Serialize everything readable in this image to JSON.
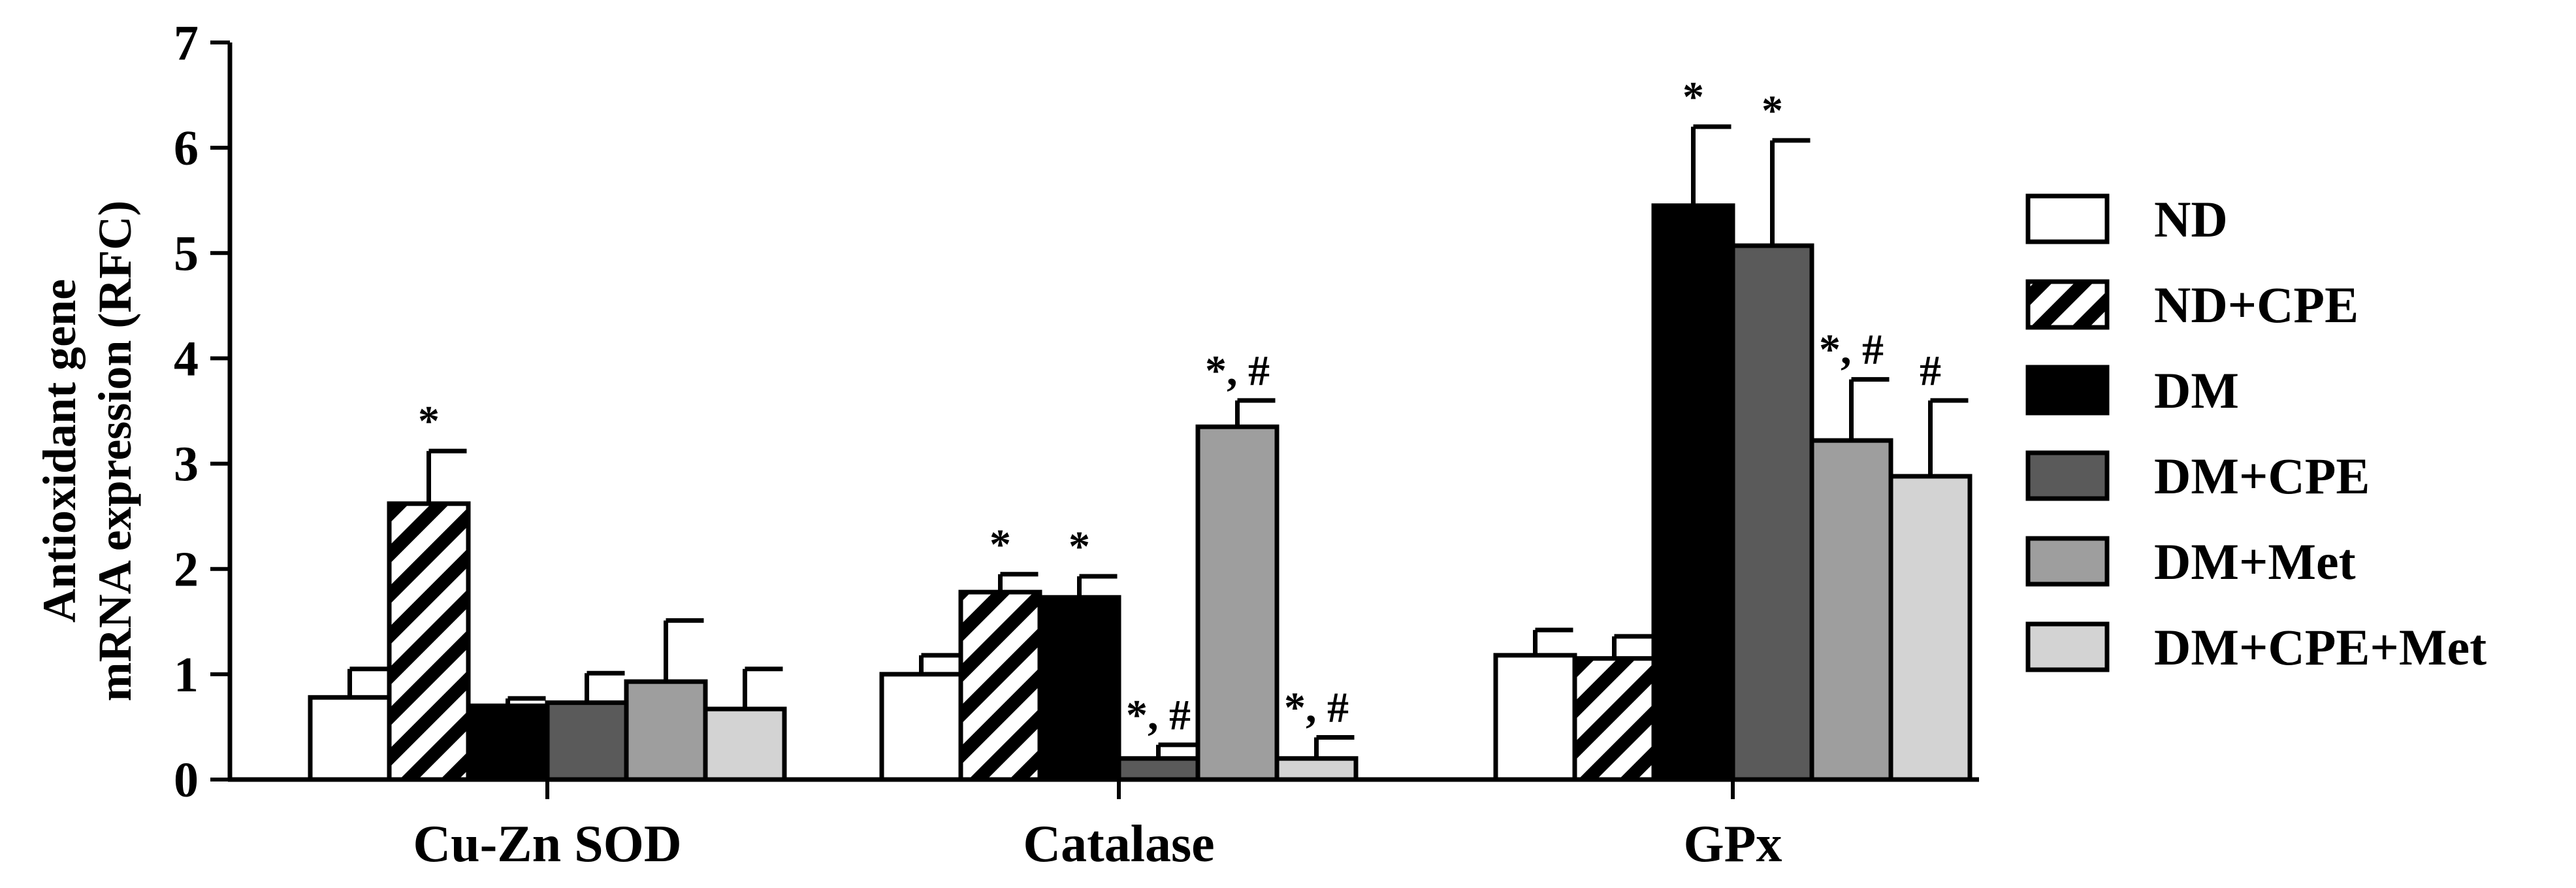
{
  "chart_data": {
    "type": "bar",
    "title": "",
    "xlabel": "",
    "ylabel_lines": [
      "Antioxidant gene",
      "mRNA expression (RFC)"
    ],
    "ylim": [
      0,
      7
    ],
    "yticks": [
      "0",
      "1",
      "2",
      "3",
      "4",
      "5",
      "6",
      "7"
    ],
    "categories": [
      "Cu-Zn SOD",
      "Catalase",
      "GPx"
    ],
    "legend_position": "right",
    "grid": false,
    "series": [
      {
        "name": "ND",
        "fill": "plain",
        "color": "#ffffff",
        "values": [
          0.78,
          1.0,
          1.18
        ],
        "errors": [
          0.27,
          0.18,
          0.24
        ],
        "annotations": [
          "",
          "",
          ""
        ]
      },
      {
        "name": "ND+CPE",
        "fill": "hatched",
        "color": "#ffffff",
        "values": [
          2.62,
          1.78,
          1.15
        ],
        "errors": [
          0.5,
          0.17,
          0.21
        ],
        "annotations": [
          "*",
          "*",
          ""
        ]
      },
      {
        "name": "DM",
        "fill": "plain",
        "color": "#000000",
        "values": [
          0.7,
          1.73,
          5.45
        ],
        "errors": [
          0.07,
          0.2,
          0.75
        ],
        "annotations": [
          "",
          "*",
          "*"
        ]
      },
      {
        "name": "DM+CPE",
        "fill": "plain",
        "color": "#5a5a5a",
        "values": [
          0.73,
          0.2,
          5.07
        ],
        "errors": [
          0.28,
          0.13,
          1.0
        ],
        "annotations": [
          "",
          "*, #",
          "*"
        ]
      },
      {
        "name": "DM+Met",
        "fill": "plain",
        "color": "#9e9e9e",
        "values": [
          0.93,
          3.35,
          3.22
        ],
        "errors": [
          0.58,
          0.25,
          0.58
        ],
        "annotations": [
          "",
          "*, #",
          "*, #"
        ]
      },
      {
        "name": "DM+CPE+Met",
        "fill": "plain",
        "color": "#d3d3d3",
        "values": [
          0.67,
          0.2,
          2.88
        ],
        "errors": [
          0.38,
          0.2,
          0.72
        ],
        "annotations": [
          "",
          "*, #",
          "#"
        ]
      }
    ]
  }
}
